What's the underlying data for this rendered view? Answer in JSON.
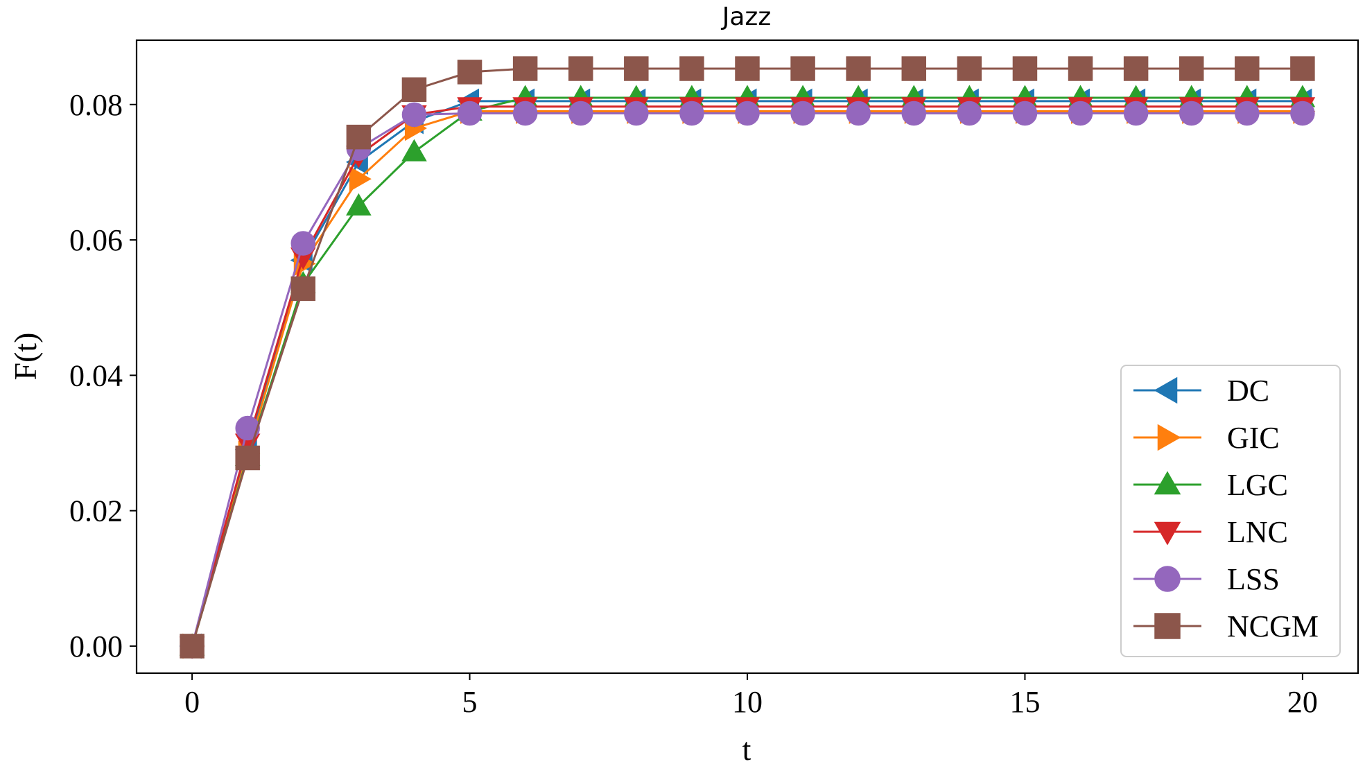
{
  "chart_data": {
    "type": "line",
    "title": "Jazz",
    "xlabel": "t",
    "ylabel": "F(t)",
    "xlim": [
      -1,
      21
    ],
    "ylim": [
      -0.004,
      0.0895
    ],
    "xticks": [
      0,
      5,
      10,
      15,
      20
    ],
    "xtick_labels": [
      "0",
      "5",
      "10",
      "15",
      "20"
    ],
    "yticks": [
      0.0,
      0.02,
      0.04,
      0.06,
      0.08
    ],
    "ytick_labels": [
      "0.00",
      "0.02",
      "0.04",
      "0.06",
      "0.08"
    ],
    "grid": false,
    "legend_position": "lower-right",
    "x": [
      0,
      1,
      2,
      3,
      4,
      5,
      6,
      7,
      8,
      9,
      10,
      11,
      12,
      13,
      14,
      15,
      16,
      17,
      18,
      19,
      20
    ],
    "series": [
      {
        "name": "DC",
        "color": "#1f77b4",
        "marker": "triangle-left",
        "values": [
          0.0,
          0.029,
          0.057,
          0.0715,
          0.0775,
          0.0805,
          0.0805,
          0.0805,
          0.0805,
          0.0805,
          0.0805,
          0.0805,
          0.0805,
          0.0805,
          0.0805,
          0.0805,
          0.0805,
          0.0805,
          0.0805,
          0.0805,
          0.0805
        ]
      },
      {
        "name": "GIC",
        "color": "#ff7f0e",
        "marker": "triangle-right",
        "values": [
          0.0,
          0.0285,
          0.0565,
          0.069,
          0.0765,
          0.079,
          0.079,
          0.079,
          0.079,
          0.079,
          0.079,
          0.079,
          0.079,
          0.079,
          0.079,
          0.079,
          0.079,
          0.079,
          0.079,
          0.079,
          0.079
        ]
      },
      {
        "name": "LGC",
        "color": "#2ca02c",
        "marker": "triangle-up",
        "values": [
          0.0,
          0.028,
          0.0535,
          0.065,
          0.073,
          0.079,
          0.081,
          0.081,
          0.081,
          0.081,
          0.081,
          0.081,
          0.081,
          0.081,
          0.081,
          0.081,
          0.081,
          0.081,
          0.081,
          0.081,
          0.081
        ]
      },
      {
        "name": "LNC",
        "color": "#d62728",
        "marker": "triangle-down",
        "values": [
          0.0,
          0.03,
          0.0575,
          0.0725,
          0.0785,
          0.0797,
          0.0797,
          0.0797,
          0.0797,
          0.0797,
          0.0797,
          0.0797,
          0.0797,
          0.0797,
          0.0797,
          0.0797,
          0.0797,
          0.0797,
          0.0797,
          0.0797,
          0.0797
        ]
      },
      {
        "name": "LSS",
        "color": "#9467bd",
        "marker": "circle",
        "values": [
          0.0,
          0.0322,
          0.0595,
          0.0735,
          0.0785,
          0.0787,
          0.0787,
          0.0787,
          0.0787,
          0.0787,
          0.0787,
          0.0787,
          0.0787,
          0.0787,
          0.0787,
          0.0787,
          0.0787,
          0.0787,
          0.0787,
          0.0787,
          0.0787
        ]
      },
      {
        "name": "NCGM",
        "color": "#8c564b",
        "marker": "square",
        "values": [
          0.0,
          0.0278,
          0.0528,
          0.0752,
          0.0822,
          0.0848,
          0.0853,
          0.0853,
          0.0853,
          0.0853,
          0.0853,
          0.0853,
          0.0853,
          0.0853,
          0.0853,
          0.0853,
          0.0853,
          0.0853,
          0.0853,
          0.0853,
          0.0853
        ]
      }
    ]
  }
}
